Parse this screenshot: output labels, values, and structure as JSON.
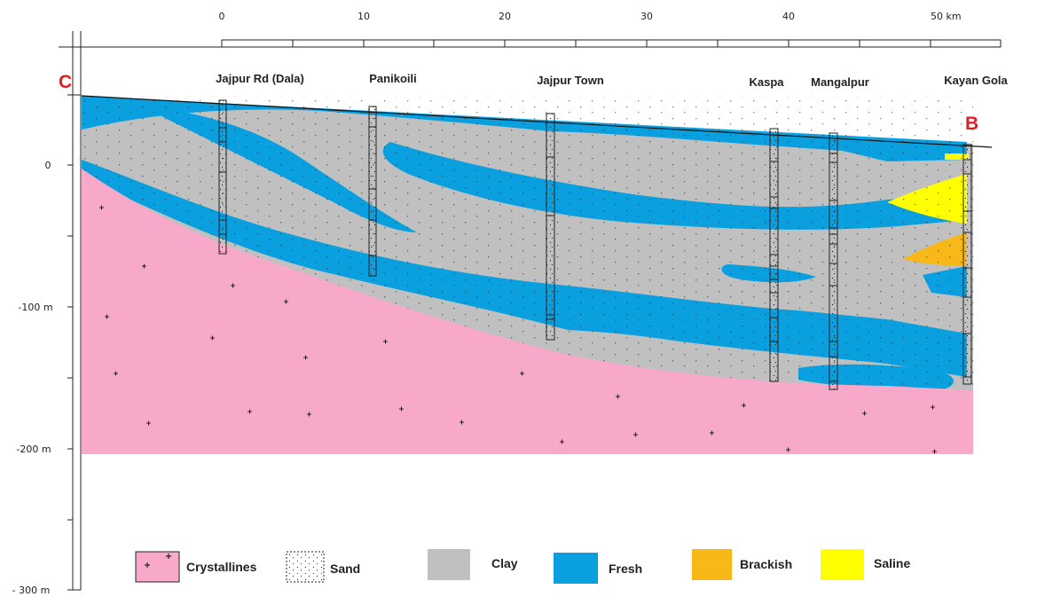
{
  "section_ends": {
    "start": "C",
    "end": "B"
  },
  "distance_scale": {
    "ticks": [
      "0",
      "10",
      "20",
      "30",
      "40",
      "50 km"
    ]
  },
  "depth_scale": {
    "ticks": [
      "0",
      "-100 m",
      "-200 m",
      "- 300 m"
    ]
  },
  "wells": [
    {
      "name": "Jajpur Rd (Dala)"
    },
    {
      "name": "Panikoili"
    },
    {
      "name": "Jajpur Town"
    },
    {
      "name": "Kaspa"
    },
    {
      "name": "Mangalpur"
    },
    {
      "name": "Kayan Gola"
    }
  ],
  "legend": [
    {
      "label": "Crystallines",
      "color": "#f8a8c8"
    },
    {
      "label": "Sand",
      "color": "#ffffff"
    },
    {
      "label": "Clay",
      "color": "#c0c0c0"
    },
    {
      "label": "Fresh",
      "color": "#0aa0e0"
    },
    {
      "label": "Brackish",
      "color": "#f8b818"
    },
    {
      "label": "Saline",
      "color": "#ffff00"
    }
  ]
}
